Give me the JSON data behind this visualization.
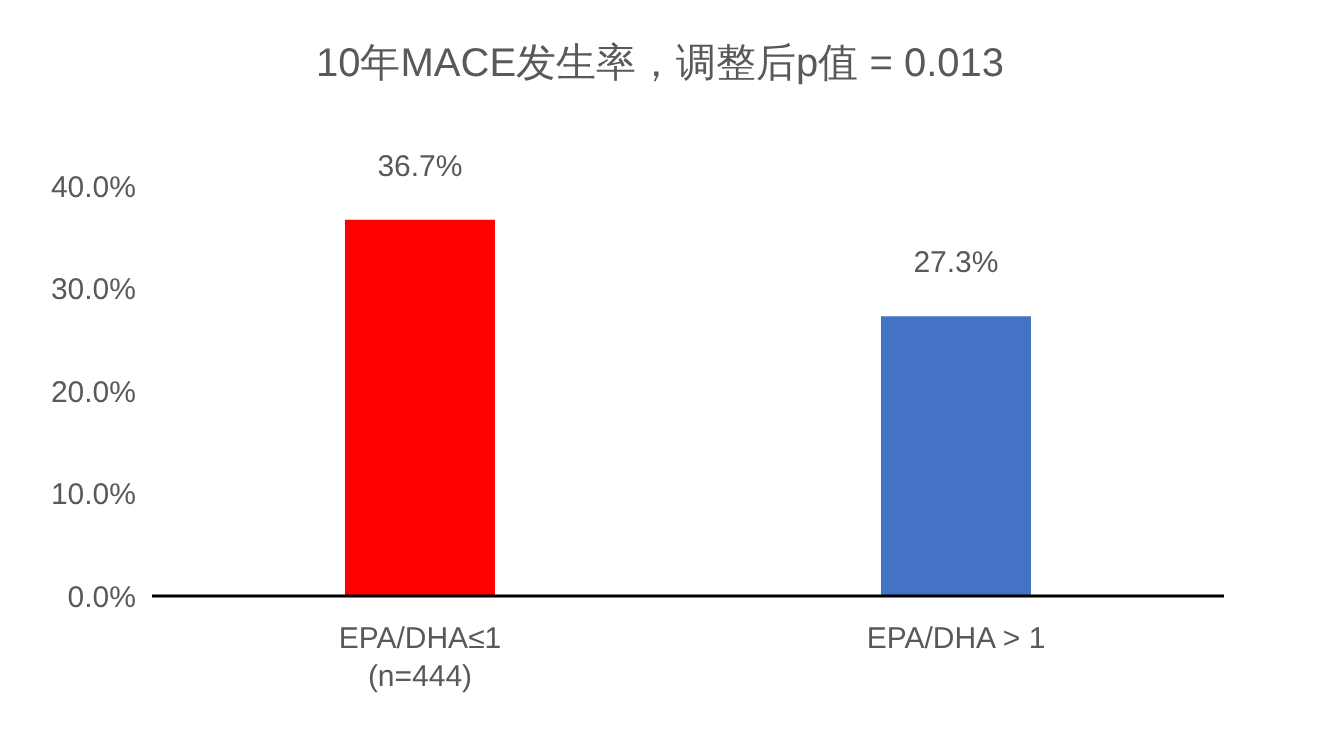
{
  "chart_data": {
    "type": "bar",
    "title": "10年MACE发生率，调整后p值 = 0.013",
    "categories": [
      "EPA/DHA≤1\n(n=444)",
      "EPA/DHA > 1"
    ],
    "values": [
      36.7,
      27.3
    ],
    "colors": [
      "#ff0000",
      "#4472c4"
    ],
    "value_labels": [
      "36.7%",
      "27.3%"
    ],
    "ylim": [
      0,
      40
    ],
    "yticks": [
      {
        "value": 0,
        "label": "0.0%"
      },
      {
        "value": 10,
        "label": "10.0%"
      },
      {
        "value": 20,
        "label": "20.0%"
      },
      {
        "value": 30,
        "label": "30.0%"
      },
      {
        "value": 40,
        "label": "40.0%"
      }
    ],
    "grid": false,
    "legend": false
  }
}
